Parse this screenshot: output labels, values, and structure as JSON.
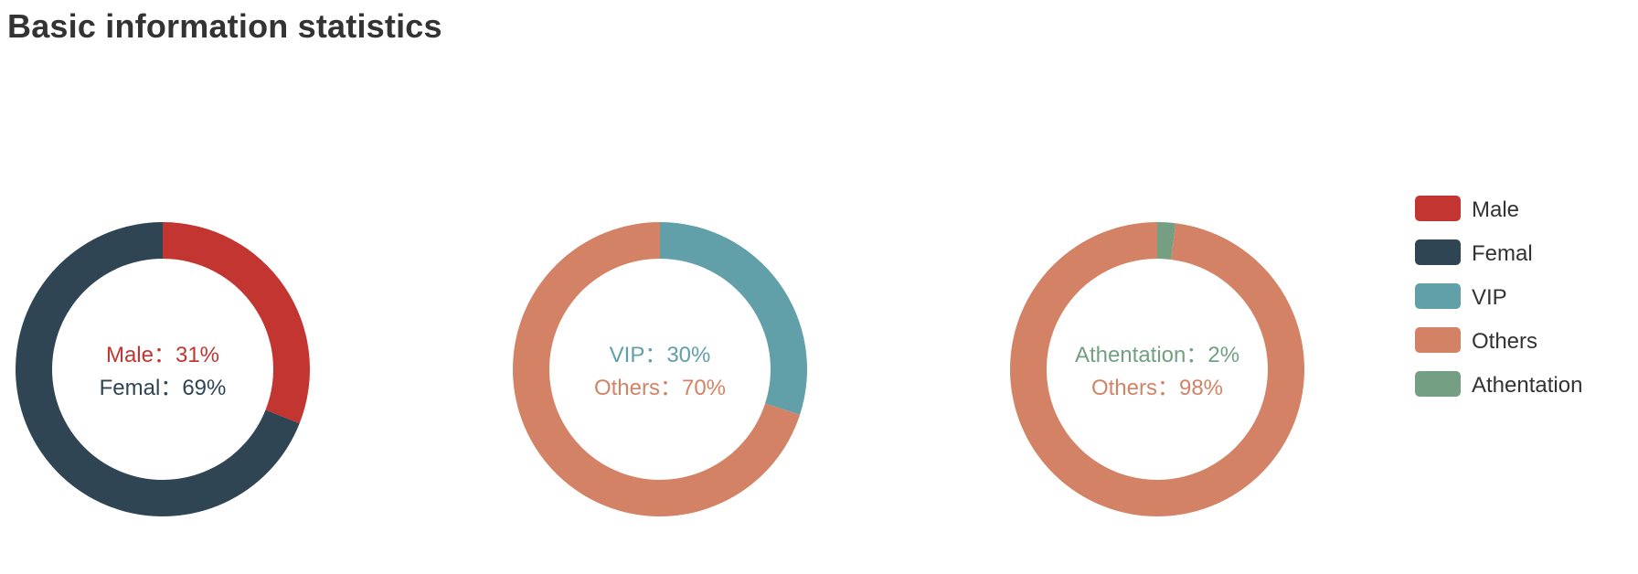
{
  "page": {
    "title": "Basic information statistics"
  },
  "chart_data": [
    {
      "type": "pie",
      "style": "donut",
      "labels": [
        "Male",
        "Femal"
      ],
      "values": [
        31,
        69
      ],
      "center_labels": [
        "Male：31%",
        "Femal：69%"
      ],
      "colors": [
        "#c23531",
        "#2f4554"
      ]
    },
    {
      "type": "pie",
      "style": "donut",
      "labels": [
        "VIP",
        "Others"
      ],
      "values": [
        30,
        70
      ],
      "center_labels": [
        "VIP：30%",
        "Others：70%"
      ],
      "colors": [
        "#61a0a8",
        "#d48265"
      ]
    },
    {
      "type": "pie",
      "style": "donut",
      "labels": [
        "Athentation",
        "Others"
      ],
      "values": [
        2,
        98
      ],
      "center_labels": [
        "Athentation：2%",
        "Others：98%"
      ],
      "colors": [
        "#749f83",
        "#d48265"
      ]
    }
  ],
  "legend": {
    "placement": "right",
    "items": [
      {
        "label": "Male",
        "color": "#c23531"
      },
      {
        "label": "Femal",
        "color": "#2f4554"
      },
      {
        "label": "VIP",
        "color": "#61a0a8"
      },
      {
        "label": "Others",
        "color": "#d48265"
      },
      {
        "label": "Athentation",
        "color": "#749f83"
      }
    ]
  }
}
